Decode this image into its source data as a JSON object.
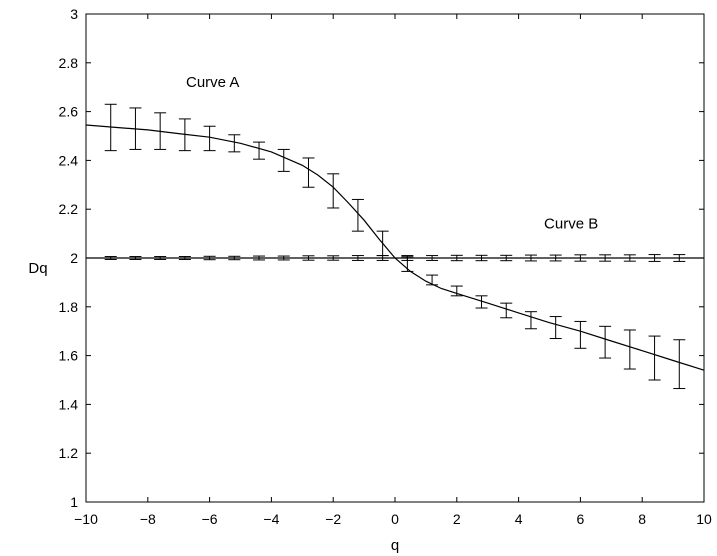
{
  "chart_data": {
    "type": "line",
    "title": "",
    "xlabel": "q",
    "ylabel": "Dq",
    "xlim": [
      -10,
      10
    ],
    "ylim": [
      1,
      3
    ],
    "xticks": [
      -10,
      -8,
      -6,
      -4,
      -2,
      0,
      2,
      4,
      6,
      8,
      10
    ],
    "yticks": [
      1,
      1.2,
      1.4,
      1.6,
      1.8,
      2,
      2.2,
      2.4,
      2.6,
      2.8,
      3
    ],
    "grid": false,
    "annotations": [
      {
        "text": "Curve A",
        "x": -5.9,
        "y": 2.7
      },
      {
        "text": "Curve B",
        "x": 5.7,
        "y": 2.12
      }
    ],
    "series": [
      {
        "name": "Curve A",
        "color": "#000000",
        "curve": {
          "x": [
            -10,
            -9,
            -8,
            -7,
            -6,
            -5,
            -4,
            -3,
            -2.5,
            -2,
            -1.5,
            -1,
            -0.5,
            0,
            0.5,
            1,
            1.5,
            2,
            3,
            4,
            5,
            6,
            7,
            8,
            9,
            10
          ],
          "y": [
            2.545,
            2.535,
            2.525,
            2.51,
            2.495,
            2.47,
            2.435,
            2.38,
            2.34,
            2.29,
            2.225,
            2.155,
            2.075,
            2.0,
            1.945,
            1.905,
            1.875,
            1.855,
            1.815,
            1.775,
            1.735,
            1.7,
            1.66,
            1.62,
            1.58,
            1.54
          ]
        },
        "points": {
          "x": [
            -9.2,
            -8.4,
            -7.6,
            -6.8,
            -6.0,
            -5.2,
            -4.4,
            -3.6,
            -2.8,
            -2.0,
            -1.2,
            -0.4,
            0.4,
            1.2,
            2.0,
            2.8,
            3.6,
            4.4,
            5.2,
            6.0,
            6.8,
            7.6,
            8.4,
            9.2
          ],
          "y": [
            2.535,
            2.53,
            2.52,
            2.505,
            2.49,
            2.47,
            2.44,
            2.4,
            2.35,
            2.275,
            2.175,
            2.06,
            1.975,
            1.91,
            1.865,
            1.82,
            1.785,
            1.745,
            1.715,
            1.685,
            1.655,
            1.625,
            1.59,
            1.565
          ],
          "err": [
            0.095,
            0.085,
            0.075,
            0.065,
            0.05,
            0.035,
            0.035,
            0.045,
            0.06,
            0.07,
            0.065,
            0.05,
            0.03,
            0.02,
            0.02,
            0.025,
            0.03,
            0.035,
            0.045,
            0.055,
            0.065,
            0.08,
            0.09,
            0.1
          ]
        }
      },
      {
        "name": "Curve B",
        "color": "#000000",
        "curve": {
          "x": [
            -10,
            10
          ],
          "y": [
            2.0,
            2.0
          ]
        },
        "points": {
          "x": [
            -9.2,
            -8.4,
            -7.6,
            -6.8,
            -6.0,
            -5.2,
            -4.4,
            -3.6,
            -2.8,
            -2.0,
            -1.2,
            -0.4,
            0.4,
            1.2,
            2.0,
            2.8,
            3.6,
            4.4,
            5.2,
            6.0,
            6.8,
            7.6,
            8.4,
            9.2
          ],
          "y": [
            2.0,
            2.0,
            2.0,
            2.0,
            2.0,
            2.0,
            2.0,
            2.0,
            2.0,
            2.0,
            2.0,
            2.0,
            2.0,
            2.0,
            2.0,
            2.0,
            2.0,
            2.0,
            2.0,
            2.0,
            2.0,
            2.0,
            2.0,
            2.0
          ],
          "err": [
            0.006,
            0.006,
            0.006,
            0.006,
            0.007,
            0.007,
            0.008,
            0.008,
            0.009,
            0.009,
            0.01,
            0.01,
            0.01,
            0.01,
            0.011,
            0.011,
            0.011,
            0.012,
            0.012,
            0.013,
            0.013,
            0.013,
            0.014,
            0.014
          ]
        }
      }
    ]
  }
}
